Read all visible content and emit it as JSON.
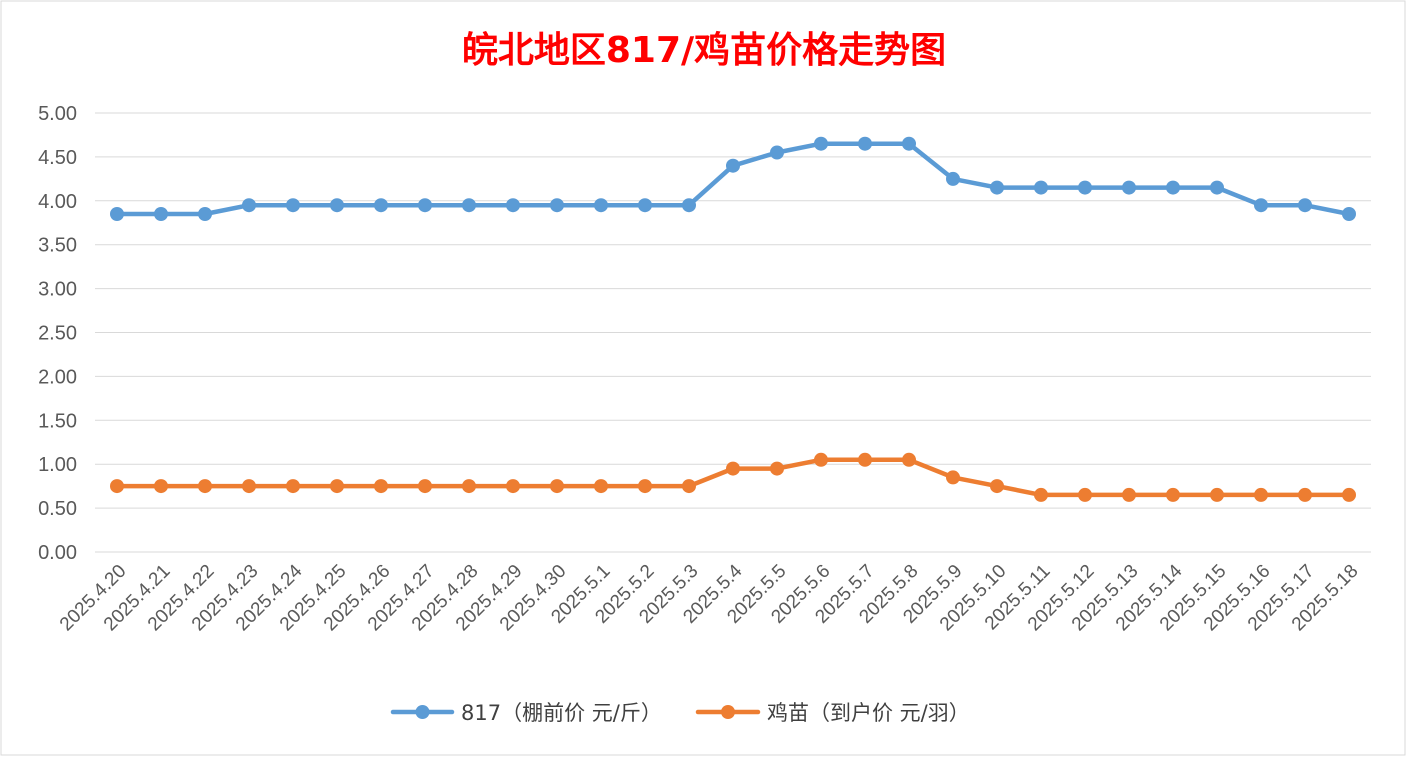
{
  "colors": {
    "title": "#ff0000",
    "series_817": "#5b9bd5",
    "series_chick": "#ed7d31",
    "grid": "#d9d9d9",
    "tick_text": "#595959",
    "frame": "#d9d9d9"
  },
  "chart_data": {
    "type": "line",
    "title": "皖北地区817/鸡苗价格走势图",
    "xlabel": "",
    "ylabel": "",
    "ylim": [
      0,
      5
    ],
    "y_ticks": [
      "0.00",
      "0.50",
      "1.00",
      "1.50",
      "2.00",
      "2.50",
      "3.00",
      "3.50",
      "4.00",
      "4.50",
      "5.00"
    ],
    "y_tick_values": [
      0,
      0.5,
      1,
      1.5,
      2,
      2.5,
      3,
      3.5,
      4,
      4.5,
      5
    ],
    "grid": true,
    "legend_position": "bottom",
    "categories": [
      "2025.4.20",
      "2025.4.21",
      "2025.4.22",
      "2025.4.23",
      "2025.4.24",
      "2025.4.25",
      "2025.4.26",
      "2025.4.27",
      "2025.4.28",
      "2025.4.29",
      "2025.4.30",
      "2025.5.1",
      "2025.5.2",
      "2025.5.3",
      "2025.5.4",
      "2025.5.5",
      "2025.5.6",
      "2025.5.7",
      "2025.5.8",
      "2025.5.9",
      "2025.5.10",
      "2025.5.11",
      "2025.5.12",
      "2025.5.13",
      "2025.5.14",
      "2025.5.15",
      "2025.5.16",
      "2025.5.17",
      "2025.5.18"
    ],
    "series": [
      {
        "name": "817（棚前价 元/斤）",
        "color_key": "series_817",
        "values": [
          3.85,
          3.85,
          3.85,
          3.95,
          3.95,
          3.95,
          3.95,
          3.95,
          3.95,
          3.95,
          3.95,
          3.95,
          3.95,
          3.95,
          4.4,
          4.55,
          4.65,
          4.65,
          4.65,
          4.25,
          4.15,
          4.15,
          4.15,
          4.15,
          4.15,
          4.15,
          3.95,
          3.95,
          3.85
        ]
      },
      {
        "name": "鸡苗（到户价 元/羽）",
        "color_key": "series_chick",
        "values": [
          0.75,
          0.75,
          0.75,
          0.75,
          0.75,
          0.75,
          0.75,
          0.75,
          0.75,
          0.75,
          0.75,
          0.75,
          0.75,
          0.75,
          0.95,
          0.95,
          1.05,
          1.05,
          1.05,
          0.85,
          0.75,
          0.65,
          0.65,
          0.65,
          0.65,
          0.65,
          0.65,
          0.65,
          0.65
        ]
      }
    ]
  }
}
